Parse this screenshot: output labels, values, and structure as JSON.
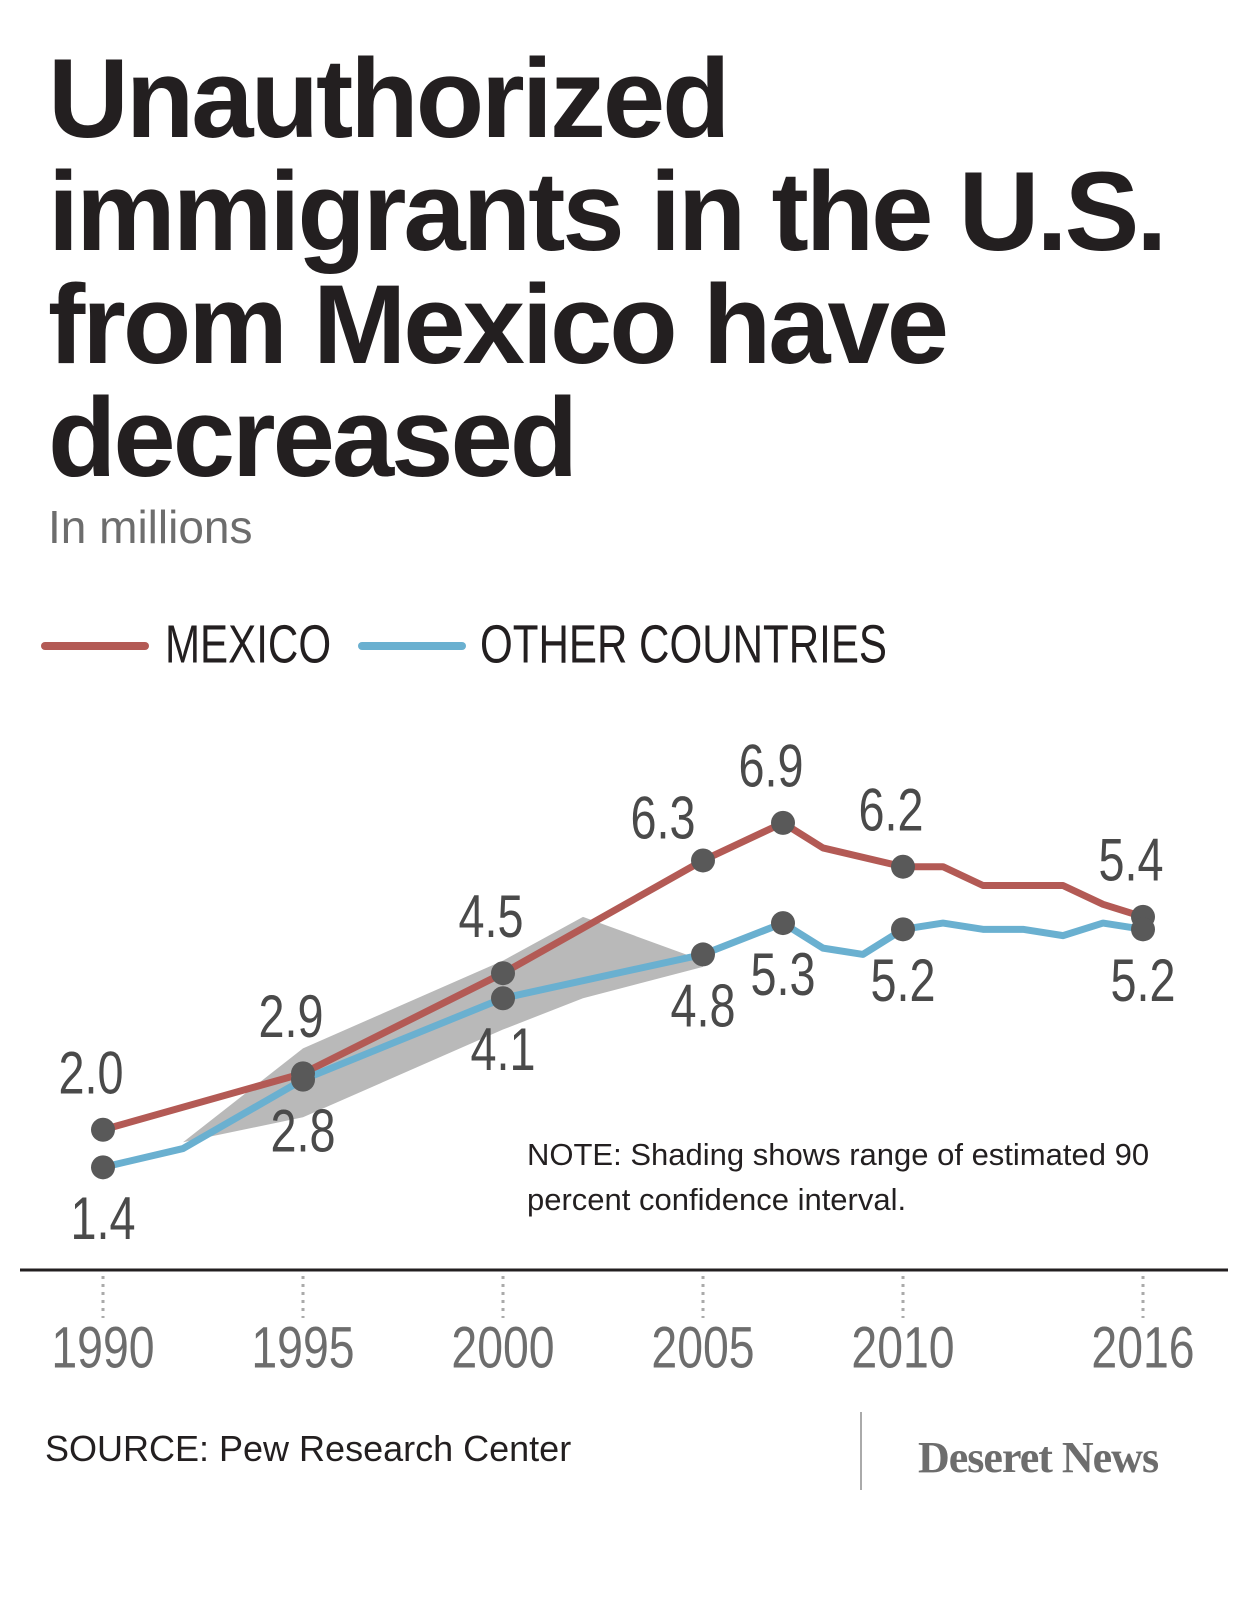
{
  "chart_data": {
    "type": "line",
    "title": "Unauthorized immigrants in the U.S. from Mexico have decreased",
    "subtitle": "In millions",
    "note": "NOTE: Shading shows range of estimated 90 percent confidence interval.",
    "source": "SOURCE:  Pew Research Center",
    "logo": "Deseret News",
    "xlim": [
      1988,
      2018
    ],
    "ylim": [
      0,
      8
    ],
    "xticks": [
      1990,
      1995,
      2000,
      2005,
      2010,
      2016
    ],
    "grid": false,
    "legend": "top-left",
    "series": [
      {
        "name": "MEXICO",
        "color": "#b35a55",
        "x": [
          1990,
          1995,
          2000,
          2005,
          2007,
          2008,
          2010,
          2011,
          2012,
          2014,
          2015,
          2016
        ],
        "values": [
          2.0,
          2.9,
          4.5,
          6.3,
          6.9,
          6.5,
          6.2,
          6.2,
          5.9,
          5.9,
          5.6,
          5.4
        ],
        "value_labels": [
          "2.0",
          "2.9",
          "4.5",
          "6.3",
          "6.9",
          null,
          "6.2",
          null,
          null,
          null,
          null,
          "5.4"
        ]
      },
      {
        "name": "OTHER COUNTRIES",
        "color": "#6ab0d0",
        "x": [
          1990,
          1992,
          1995,
          2000,
          2005,
          2007,
          2008,
          2009,
          2010,
          2011,
          2012,
          2013,
          2014,
          2015,
          2016
        ],
        "values": [
          1.4,
          1.7,
          2.8,
          4.1,
          4.8,
          5.3,
          4.9,
          4.8,
          5.2,
          5.3,
          5.2,
          5.2,
          5.1,
          5.3,
          5.2
        ],
        "value_labels": [
          "1.4",
          null,
          "2.8",
          "4.1",
          "4.8",
          "5.3",
          null,
          null,
          "5.2",
          null,
          null,
          null,
          null,
          null,
          "5.2"
        ]
      }
    ],
    "shading": {
      "color": "#b9b9b9",
      "x": [
        1992,
        1995,
        2000,
        2002,
        2005
      ],
      "upper": [
        1.8,
        3.3,
        4.7,
        5.4,
        4.7
      ],
      "lower": [
        1.8,
        2.2,
        3.6,
        4.1,
        4.6
      ]
    }
  }
}
